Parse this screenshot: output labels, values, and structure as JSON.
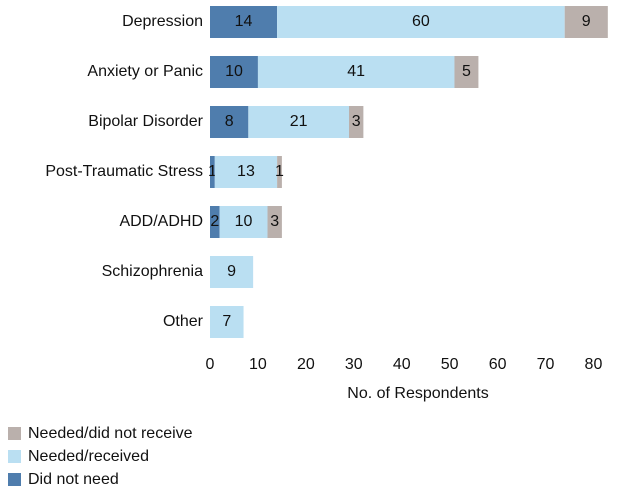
{
  "chart_data": {
    "type": "stacked-bar-horizontal",
    "categories": [
      "Depression",
      "Anxiety or Panic",
      "Bipolar Disorder",
      "Post-Traumatic Stress",
      "ADD/ADHD",
      "Schizophrenia",
      "Other"
    ],
    "series": [
      {
        "name": "Did not need",
        "color": "#4f7dad",
        "values": [
          14,
          10,
          8,
          1,
          2,
          0,
          0
        ]
      },
      {
        "name": "Needed/received",
        "color": "#badff2",
        "values": [
          60,
          41,
          21,
          13,
          10,
          9,
          7
        ]
      },
      {
        "name": "Needed/did not receive",
        "color": "#bab0ac",
        "values": [
          9,
          5,
          3,
          1,
          3,
          0,
          0
        ]
      }
    ],
    "xlabel": "No. of Respondents",
    "xlim": [
      0,
      87
    ],
    "xticks": [
      0,
      10,
      20,
      30,
      40,
      50,
      60,
      70,
      80
    ],
    "grid": false,
    "legend": "bottom-left"
  }
}
